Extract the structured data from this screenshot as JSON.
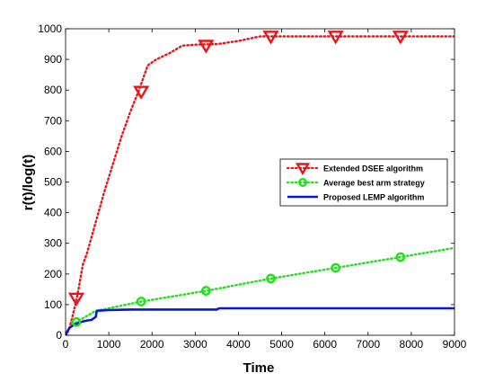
{
  "chart_data": {
    "type": "line",
    "title": "",
    "xlabel": "Time",
    "ylabel": "r(t)/log(t)",
    "xlim": [
      0,
      9000
    ],
    "ylim": [
      0,
      1000
    ],
    "xticks": [
      0,
      1000,
      2000,
      3000,
      4000,
      5000,
      6000,
      7000,
      8000,
      9000
    ],
    "yticks": [
      0,
      100,
      200,
      300,
      400,
      500,
      600,
      700,
      800,
      900,
      1000
    ],
    "grid": false,
    "legend_position": "right",
    "series": [
      {
        "name": "Extended DSEE algorithm",
        "color": "#e8161b",
        "line_style": "dotted",
        "marker": "triangle-down",
        "x": [
          0,
          50,
          100,
          150,
          200,
          250,
          300,
          400,
          500,
          700,
          900,
          1100,
          1300,
          1500,
          1700,
          1900,
          2100,
          2400,
          2700,
          3000,
          3500,
          4000,
          4500,
          4800,
          5500,
          6000,
          6500,
          7000,
          7500,
          8000,
          8500,
          9000
        ],
        "y": [
          0,
          10,
          30,
          55,
          85,
          115,
          150,
          230,
          270,
          370,
          470,
          560,
          650,
          730,
          800,
          880,
          900,
          920,
          945,
          948,
          950,
          960,
          975,
          975,
          975,
          975,
          975,
          975,
          975,
          975,
          975,
          975
        ],
        "marker_x": [
          250,
          1750,
          3250,
          4750,
          6250,
          7750
        ],
        "marker_y": [
          120,
          795,
          945,
          975,
          975,
          975
        ]
      },
      {
        "name": "Average best arm strategy",
        "color": "#22e01e",
        "line_style": "dotted",
        "marker": "circle",
        "x": [
          0,
          50,
          100,
          200,
          250,
          400,
          700,
          1000,
          1750,
          3250,
          4750,
          6250,
          7750,
          9000
        ],
        "y": [
          0,
          15,
          25,
          38,
          43,
          55,
          80,
          88,
          110,
          145,
          185,
          220,
          255,
          285
        ],
        "marker_x": [
          250,
          1750,
          3250,
          4750,
          6250,
          7750
        ],
        "marker_y": [
          43,
          110,
          145,
          185,
          220,
          255
        ]
      },
      {
        "name": "Proposed LEMP algorithm",
        "color": "#0a18d6",
        "line_style": "solid",
        "marker": "none",
        "x": [
          0,
          50,
          100,
          200,
          300,
          400,
          500,
          600,
          650,
          700,
          720,
          750,
          1000,
          1500,
          2000,
          2500,
          3000,
          3500,
          3550,
          4000,
          5000,
          6000,
          7000,
          8000,
          9000
        ],
        "y": [
          0,
          15,
          25,
          35,
          40,
          45,
          48,
          50,
          55,
          60,
          78,
          80,
          82,
          84,
          84,
          84,
          84,
          84,
          88,
          88,
          88,
          88,
          88,
          88,
          88
        ]
      }
    ]
  }
}
